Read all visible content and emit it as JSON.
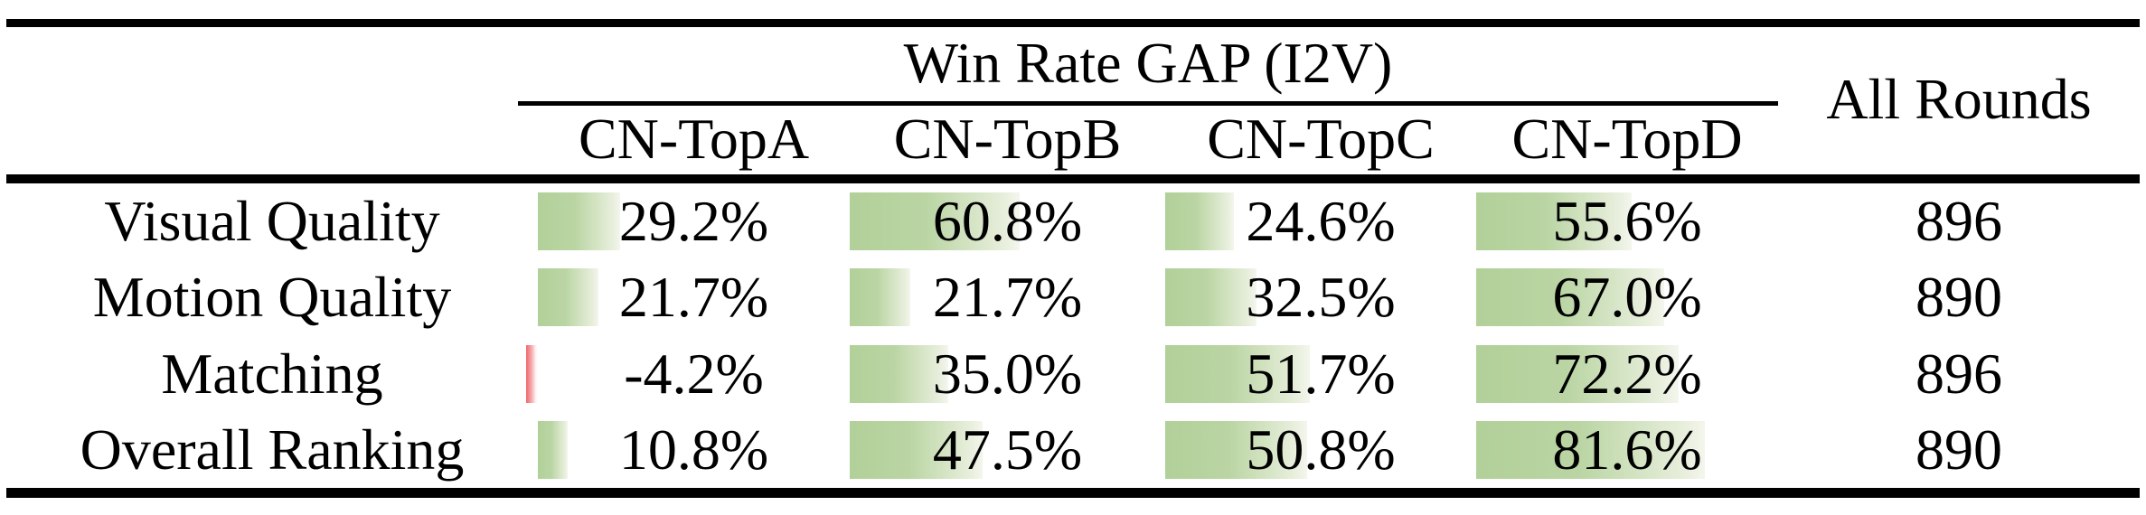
{
  "table": {
    "group_header": "Win Rate GAP (I2V)",
    "all_rounds_header": "All Rounds",
    "column_headers": [
      "CN-TopA",
      "CN-TopB",
      "CN-TopC",
      "CN-TopD"
    ],
    "rows": [
      {
        "label": "Visual Quality",
        "cells": [
          {
            "value": 29.2,
            "display": "29.2%"
          },
          {
            "value": 60.8,
            "display": "60.8%"
          },
          {
            "value": 24.6,
            "display": "24.6%"
          },
          {
            "value": 55.6,
            "display": "55.6%"
          }
        ],
        "all_rounds": "896"
      },
      {
        "label": "Motion Quality",
        "cells": [
          {
            "value": 21.7,
            "display": "21.7%"
          },
          {
            "value": 21.7,
            "display": "21.7%"
          },
          {
            "value": 32.5,
            "display": "32.5%"
          },
          {
            "value": 67.0,
            "display": "67.0%"
          }
        ],
        "all_rounds": "890"
      },
      {
        "label": "Matching",
        "cells": [
          {
            "value": -4.2,
            "display": "-4.2%"
          },
          {
            "value": 35.0,
            "display": "35.0%"
          },
          {
            "value": 51.7,
            "display": "51.7%"
          },
          {
            "value": 72.2,
            "display": "72.2%"
          }
        ],
        "all_rounds": "896"
      },
      {
        "label": "Overall Ranking",
        "cells": [
          {
            "value": 10.8,
            "display": "10.8%"
          },
          {
            "value": 47.5,
            "display": "47.5%"
          },
          {
            "value": 50.8,
            "display": "50.8%"
          },
          {
            "value": 81.6,
            "display": "81.6%"
          }
        ],
        "all_rounds": "890"
      }
    ],
    "colors": {
      "positive_bar": "#b2d099",
      "negative_bar": "#ef666c",
      "rule": "#000000",
      "background": "#ffffff",
      "text": "#000000"
    }
  },
  "chart_data": {
    "type": "table",
    "title": "Win Rate GAP (I2V)",
    "categories": [
      "Visual Quality",
      "Motion Quality",
      "Matching",
      "Overall Ranking"
    ],
    "series": [
      {
        "name": "CN-TopA",
        "values": [
          29.2,
          21.7,
          -4.2,
          10.8
        ],
        "unit": "%"
      },
      {
        "name": "CN-TopB",
        "values": [
          60.8,
          21.7,
          35.0,
          47.5
        ],
        "unit": "%"
      },
      {
        "name": "CN-TopC",
        "values": [
          24.6,
          32.5,
          51.7,
          50.8
        ],
        "unit": "%"
      },
      {
        "name": "CN-TopD",
        "values": [
          55.6,
          67.0,
          72.2,
          81.6
        ],
        "unit": "%"
      },
      {
        "name": "All Rounds",
        "values": [
          896,
          890,
          896,
          890
        ],
        "unit": "count"
      }
    ],
    "layout_hints": "in-cell gradient data bars, green positive / red negative, booktabs-style rules"
  }
}
